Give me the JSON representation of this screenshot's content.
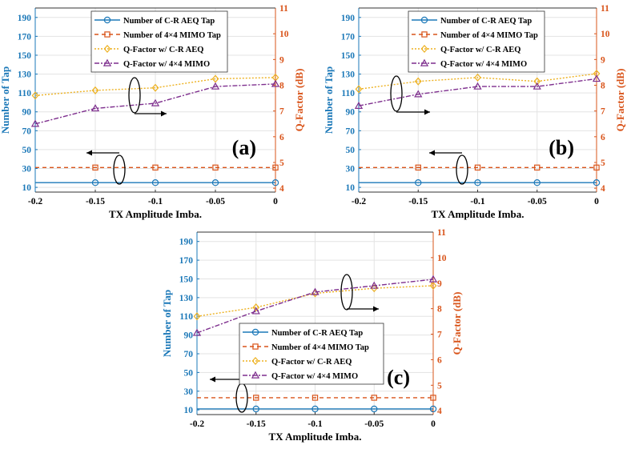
{
  "colors": {
    "left_axis": "#1b78b8",
    "right_axis": "#d9541a",
    "cr_tap": "#1b78b8",
    "mimo_tap": "#d9541a",
    "q_cr": "#edb120",
    "q_mimo": "#7e2f8e",
    "grid": "#e3e3e3"
  },
  "chart_data": [
    {
      "type": "line",
      "panel_label": "(a)",
      "xlabel": "TX Amplitude Imba.",
      "ylabel_left": "Number of Tap",
      "ylabel_right": "Q-Factor (dB)",
      "x_ticks": [
        "-0.2",
        "-0.15",
        "-0.1",
        "-0.05",
        "0"
      ],
      "y_left_ticks": [
        "10",
        "30",
        "50",
        "70",
        "90",
        "110",
        "130",
        "150",
        "170",
        "190"
      ],
      "y_right_ticks": [
        "4",
        "5",
        "6",
        "7",
        "8",
        "9",
        "10",
        "11"
      ],
      "xlim": [
        -0.2,
        0
      ],
      "ylim_left": [
        5,
        200
      ],
      "ylim_right": [
        3.85,
        11
      ],
      "legend_position": "top-center",
      "legend": [
        "Number of C-R AEQ Tap",
        "Number of 4×4 MIMO Tap",
        "Q-Factor w/ C-R AEQ",
        "Q-Factor w/ 4×4 MIMO"
      ],
      "series": [
        {
          "name": "Number of C-R AEQ Tap",
          "axis": "left",
          "x": [
            -0.15,
            -0.1,
            -0.05,
            0
          ],
          "values": [
            15,
            15,
            15,
            15
          ]
        },
        {
          "name": "Number of 4×4 MIMO Tap",
          "axis": "left",
          "x": [
            -0.15,
            -0.1,
            -0.05,
            0
          ],
          "values": [
            31,
            31,
            31,
            31
          ]
        },
        {
          "name": "Q-Factor w/ C-R AEQ",
          "axis": "right",
          "x": [
            -0.2,
            -0.15,
            -0.1,
            -0.05,
            0
          ],
          "values": [
            7.6,
            7.8,
            7.9,
            8.25,
            8.3
          ]
        },
        {
          "name": "Q-Factor w/ 4×4 MIMO",
          "axis": "right",
          "x": [
            -0.2,
            -0.15,
            -0.1,
            -0.05,
            0
          ],
          "values": [
            6.5,
            7.1,
            7.3,
            7.95,
            8.05
          ]
        }
      ]
    },
    {
      "type": "line",
      "panel_label": "(b)",
      "xlabel": "TX Amplitude Imba.",
      "ylabel_left": "Number of Tap",
      "ylabel_right": "Q-Factor (dB)",
      "x_ticks": [
        "-0.2",
        "-0.15",
        "-0.1",
        "-0.05",
        "0"
      ],
      "y_left_ticks": [
        "10",
        "30",
        "50",
        "70",
        "90",
        "110",
        "130",
        "150",
        "170",
        "190"
      ],
      "y_right_ticks": [
        "4",
        "5",
        "6",
        "7",
        "8",
        "9",
        "10",
        "11"
      ],
      "xlim": [
        -0.2,
        0
      ],
      "ylim_left": [
        5,
        200
      ],
      "ylim_right": [
        3.85,
        11
      ],
      "legend_position": "top-center",
      "legend": [
        "Number of C-R AEQ Tap",
        "Number of 4×4 MIMO Tap",
        "Q-Factor w/ C-R AEQ",
        "Q-Factor w/ 4×4 MIMO"
      ],
      "series": [
        {
          "name": "Number of C-R AEQ Tap",
          "axis": "left",
          "x": [
            -0.15,
            -0.1,
            -0.05,
            0
          ],
          "values": [
            15,
            15,
            15,
            15
          ]
        },
        {
          "name": "Number of 4×4 MIMO Tap",
          "axis": "left",
          "x": [
            -0.15,
            -0.1,
            -0.05,
            0
          ],
          "values": [
            31,
            31,
            31,
            31
          ]
        },
        {
          "name": "Q-Factor w/ C-R AEQ",
          "axis": "right",
          "x": [
            -0.2,
            -0.15,
            -0.1,
            -0.05,
            0
          ],
          "values": [
            7.85,
            8.15,
            8.3,
            8.15,
            8.45
          ]
        },
        {
          "name": "Q-Factor w/ 4×4 MIMO",
          "axis": "right",
          "x": [
            -0.2,
            -0.15,
            -0.1,
            -0.05,
            0
          ],
          "values": [
            7.2,
            7.65,
            7.95,
            7.95,
            8.25
          ]
        }
      ]
    },
    {
      "type": "line",
      "panel_label": "(c)",
      "xlabel": "TX Amplitude Imba.",
      "ylabel_left": "Number of Tap",
      "ylabel_right": "Q-Factor (dB)",
      "x_ticks": [
        "-0.2",
        "-0.15",
        "-0.1",
        "-0.05",
        "0"
      ],
      "y_left_ticks": [
        "10",
        "30",
        "50",
        "70",
        "90",
        "110",
        "130",
        "150",
        "170",
        "190"
      ],
      "y_right_ticks": [
        "4",
        "5",
        "6",
        "7",
        "8",
        "9",
        "10",
        "11"
      ],
      "xlim": [
        -0.2,
        0
      ],
      "ylim_left": [
        5,
        200
      ],
      "ylim_right": [
        3.85,
        11
      ],
      "legend_position": "bottom-center",
      "legend": [
        "Number of C-R AEQ Tap",
        "Number of 4×4 MIMO Tap",
        "Q-Factor w/ C-R AEQ",
        "Q-Factor w/ 4×4 MIMO"
      ],
      "series": [
        {
          "name": "Number of C-R AEQ Tap",
          "axis": "left",
          "x": [
            -0.15,
            -0.1,
            -0.05,
            0
          ],
          "values": [
            11,
            11,
            11,
            11
          ]
        },
        {
          "name": "Number of 4×4 MIMO Tap",
          "axis": "left",
          "x": [
            -0.15,
            -0.1,
            -0.05,
            0
          ],
          "values": [
            23,
            23,
            23,
            23
          ]
        },
        {
          "name": "Q-Factor w/ C-R AEQ",
          "axis": "right",
          "x": [
            -0.2,
            -0.15,
            -0.1,
            -0.05,
            0
          ],
          "values": [
            7.7,
            8.05,
            8.6,
            8.8,
            8.9
          ]
        },
        {
          "name": "Q-Factor w/ 4×4 MIMO",
          "axis": "right",
          "x": [
            -0.2,
            -0.15,
            -0.1,
            -0.05,
            0
          ],
          "values": [
            7.05,
            7.9,
            8.65,
            8.9,
            9.15
          ]
        }
      ]
    }
  ]
}
